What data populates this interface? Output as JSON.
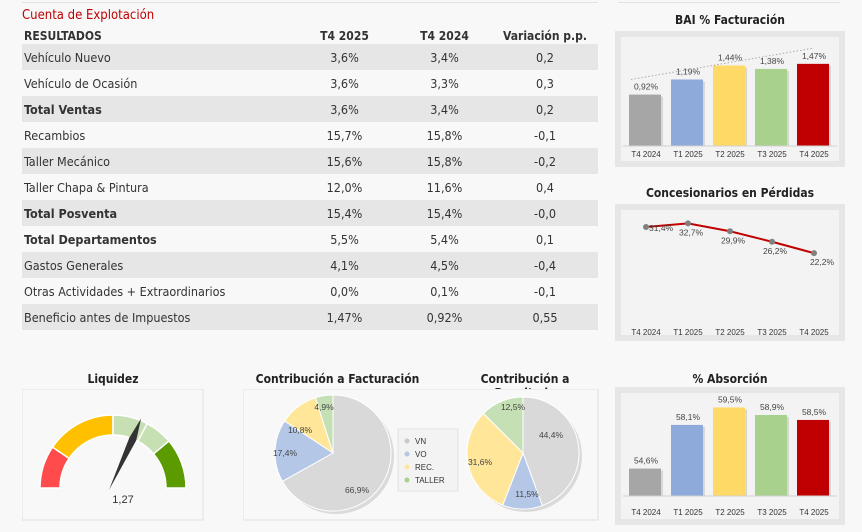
{
  "title": "Cuenta de Explotación",
  "table": {
    "headers": [
      "RESULTADOS",
      "T4 2025",
      "T4 2024",
      "Variación p.p."
    ],
    "rows": [
      {
        "label": "Vehículo Nuevo",
        "t4_2025": "3,6%",
        "t4_2024": "3,4%",
        "var": "0,2",
        "bold": false
      },
      {
        "label": "Vehículo de Ocasión",
        "t4_2025": "3,6%",
        "t4_2024": "3,3%",
        "var": "0,3",
        "bold": false
      },
      {
        "label": "Total Ventas",
        "t4_2025": "3,6%",
        "t4_2024": "3,4%",
        "var": "0,2",
        "bold": true
      },
      {
        "label": "Recambios",
        "t4_2025": "15,7%",
        "t4_2024": "15,8%",
        "var": "-0,1",
        "bold": false
      },
      {
        "label": "Taller Mecánico",
        "t4_2025": "15,6%",
        "t4_2024": "15,8%",
        "var": "-0,2",
        "bold": false
      },
      {
        "label": "Taller Chapa & Pintura",
        "t4_2025": "12,0%",
        "t4_2024": "11,6%",
        "var": "0,4",
        "bold": false
      },
      {
        "label": "Total Posventa",
        "t4_2025": "15,4%",
        "t4_2024": "15,4%",
        "var": "-0,0",
        "bold": true
      },
      {
        "label": "Total Departamentos",
        "t4_2025": "5,5%",
        "t4_2024": "5,4%",
        "var": "0,1",
        "bold": true
      },
      {
        "label": "Gastos Generales",
        "t4_2025": "4,1%",
        "t4_2024": "4,5%",
        "var": "-0,4",
        "bold": false
      },
      {
        "label": "Otras Actividades + Extraordinarios",
        "t4_2025": "0,0%",
        "t4_2024": "0,1%",
        "var": "-0,1",
        "bold": false
      },
      {
        "label": "Beneficio antes de Impuestos",
        "t4_2025": "1,47%",
        "t4_2024": "0,92%",
        "var": "0,55",
        "bold": false
      }
    ]
  },
  "chart_data": [
    {
      "id": "bai",
      "type": "bar",
      "title": "BAI % Facturación",
      "categories": [
        "T4 2024",
        "T1 2025",
        "T2 2025",
        "T3 2025",
        "T4 2025"
      ],
      "values": [
        0.92,
        1.19,
        1.44,
        1.38,
        1.47
      ],
      "labels": [
        "0,92%",
        "1,19%",
        "1,44%",
        "1,38%",
        "1,47%"
      ],
      "colors": [
        "#a6a6a6",
        "#8eaadb",
        "#ffd966",
        "#a9d18e",
        "#c00000"
      ],
      "trendline": true,
      "ylim": [
        0,
        1.7
      ]
    },
    {
      "id": "perdidas",
      "type": "line",
      "title": "Concesionarios en Pérdidas",
      "categories": [
        "T4 2024",
        "T1 2025",
        "T2 2025",
        "T3 2025",
        "T4 2025"
      ],
      "values": [
        31.4,
        32.7,
        29.9,
        26.2,
        22.2
      ],
      "labels": [
        "31,4%",
        "32,7%",
        "29,9%",
        "26,2%",
        "22,2%"
      ],
      "line_color": "#c00000",
      "marker_color": "#808080",
      "ylim": [
        0,
        36
      ]
    },
    {
      "id": "absorcion",
      "type": "bar",
      "title": "% Absorción",
      "categories": [
        "T4 2024",
        "T1 2025",
        "T2 2025",
        "T3 2025",
        "T4 2025"
      ],
      "values": [
        54.6,
        58.1,
        59.5,
        58.9,
        58.5
      ],
      "labels": [
        "54,6%",
        "58,1%",
        "59,5%",
        "58,9%",
        "58,5%"
      ],
      "colors": [
        "#a6a6a6",
        "#8eaadb",
        "#ffd966",
        "#a9d18e",
        "#c00000"
      ],
      "ylim": [
        52.4,
        60.5
      ]
    },
    {
      "id": "liquidez",
      "type": "gauge",
      "title": "Liquidez",
      "value": 1.27,
      "value_label": "1,27",
      "segment_colors": [
        "#ff4b4b",
        "#ffc000",
        "#c6e0b4",
        "#c6e0b4",
        "#5b9b00"
      ]
    },
    {
      "id": "facturacion",
      "type": "pie",
      "title": "Contribución a Facturación",
      "categories": [
        "VN",
        "VO",
        "REC.",
        "TALLER"
      ],
      "values": [
        66.9,
        17.4,
        10.8,
        4.9
      ],
      "labels": [
        "66,9%",
        "17,4%",
        "10,8%",
        "4,9%"
      ],
      "colors": [
        "#d9d9d9",
        "#b4c7e7",
        "#ffe699",
        "#c5e0b4"
      ]
    },
    {
      "id": "resultado",
      "type": "pie",
      "title": "Contribución a Resultado",
      "categories": [
        "VN",
        "VO",
        "REC.",
        "TALLER"
      ],
      "values": [
        44.4,
        11.5,
        31.6,
        12.5
      ],
      "labels": [
        "44,4%",
        "11,5%",
        "31,6%",
        "12,5%"
      ],
      "colors": [
        "#d9d9d9",
        "#b4c7e7",
        "#ffe699",
        "#c5e0b4"
      ]
    }
  ],
  "legend": {
    "items": [
      "VN",
      "VO",
      "REC.",
      "TALLER"
    ],
    "colors": [
      "#c9c9c9",
      "#b4c7e7",
      "#ffe699",
      "#a9d18e"
    ]
  }
}
